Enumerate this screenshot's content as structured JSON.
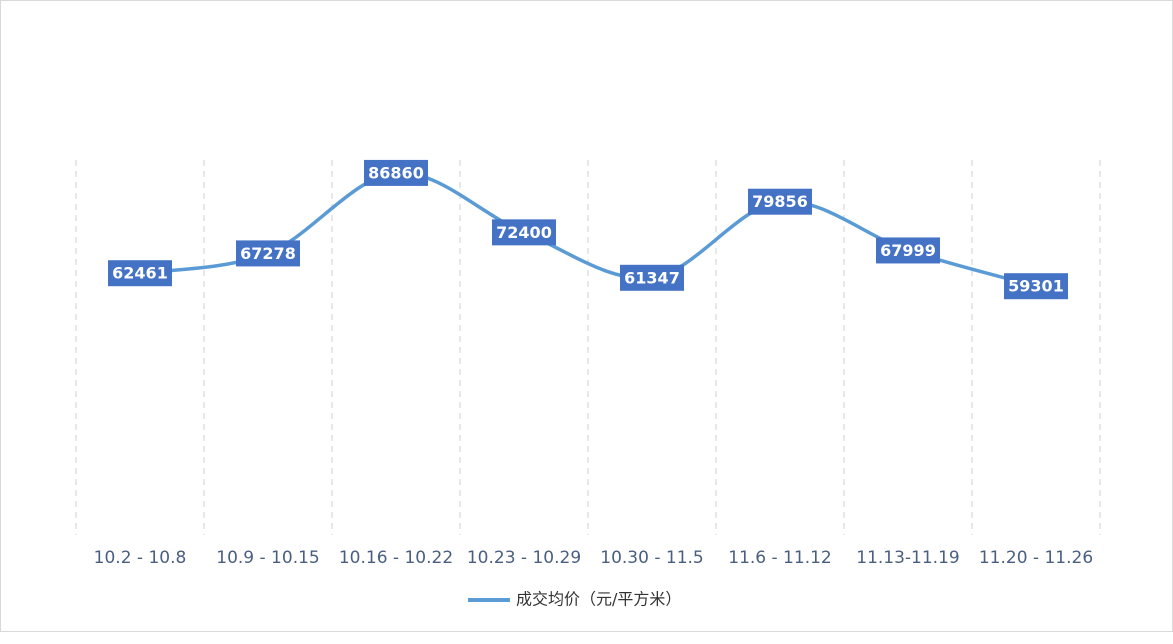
{
  "chart_data": {
    "type": "line",
    "categories": [
      "10.2 - 10.8",
      "10.9 - 10.15",
      "10.16 - 10.22",
      "10.23 - 10.29",
      "10.30 - 11.5",
      "11.6 - 11.12",
      "11.13-11.19",
      "11.20 - 11.26"
    ],
    "series": [
      {
        "name": "成交均价（元/平方米）",
        "color": "#5b9bd5",
        "label_color": "#4472c4",
        "values": [
          62461,
          67278,
          86860,
          72400,
          61347,
          79856,
          67999,
          59301
        ]
      }
    ],
    "ylim": [
      0,
      90000
    ],
    "grid": true
  }
}
